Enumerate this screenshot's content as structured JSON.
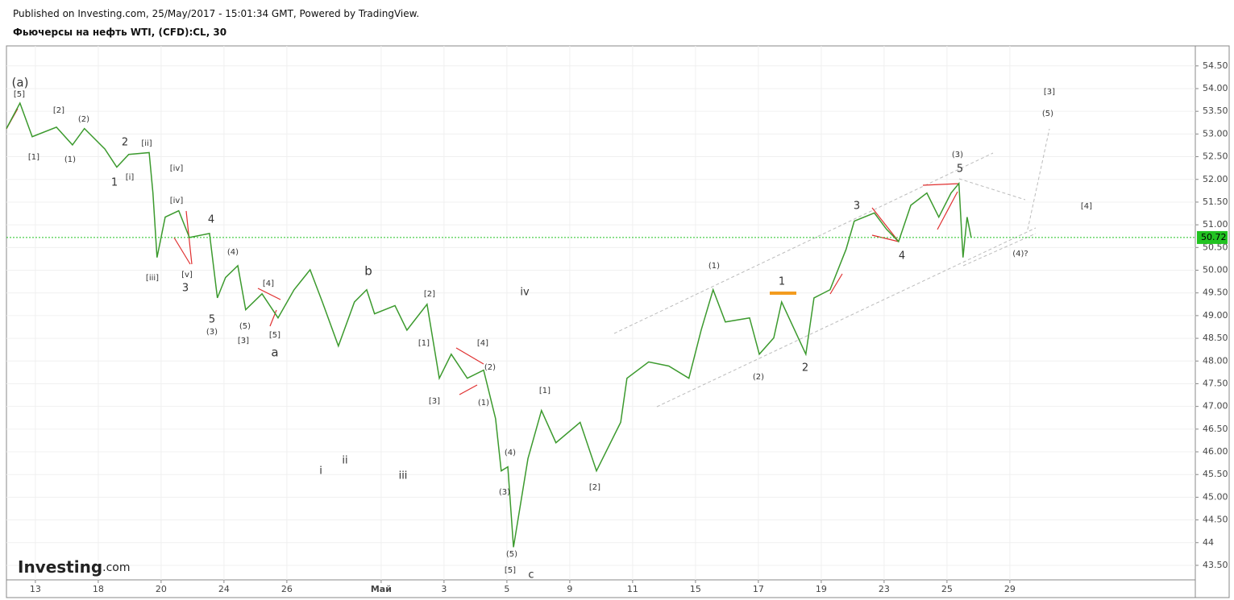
{
  "header": {
    "published": "Published on Investing.com, 25/May/2017 - 15:01:34 GMT, Powered by TradingView.",
    "instrument": "Фьючерсы на нефть WTI, (CFD):CL, 30"
  },
  "logo": {
    "name": "Investing",
    "suffix": ".com"
  },
  "chart_data": {
    "type": "line",
    "x": [
      -0.92,
      -0.49,
      -0.1,
      0.67,
      1.18,
      1.56,
      2.21,
      2.59,
      2.97,
      3.62,
      3.74,
      3.87,
      4.13,
      4.56,
      4.9,
      5.54,
      5.79,
      6.05,
      6.44,
      6.69,
      7.21,
      7.72,
      8.23,
      8.74,
      9.13,
      9.64,
      10.15,
      10.54,
      10.79,
      11.44,
      11.82,
      12.46,
      12.85,
      13.23,
      13.74,
      14.26,
      14.64,
      14.82,
      15.03,
      15.21,
      15.67,
      16.1,
      16.56,
      17.33,
      17.85,
      18.62,
      18.82,
      19.51,
      20.15,
      20.79,
      21.18,
      21.56,
      21.95,
      22.72,
      23.03,
      23.49,
      23.74,
      24.51,
      24.77,
      25.28,
      25.79,
      26.05,
      26.69,
      27.08,
      27.46,
      27.85,
      28.36,
      28.74,
      29.13,
      29.38,
      29.51,
      29.64,
      29.77
    ],
    "series": [
      {
        "color": "#3c9a2e",
        "values": [
          53.12,
          53.68,
          52.94,
          53.15,
          52.76,
          53.12,
          52.67,
          52.27,
          52.55,
          52.59,
          51.7,
          50.28,
          51.17,
          51.31,
          50.72,
          50.81,
          49.39,
          49.84,
          50.1,
          49.13,
          49.48,
          48.95,
          49.57,
          50.01,
          49.3,
          48.33,
          49.3,
          49.57,
          49.04,
          49.22,
          48.68,
          49.25,
          47.62,
          48.15,
          47.62,
          47.8,
          46.73,
          45.58,
          45.67,
          43.9,
          45.85,
          46.91,
          46.2,
          46.65,
          45.58,
          46.65,
          47.62,
          47.98,
          47.89,
          47.62,
          48.68,
          49.57,
          48.86,
          48.95,
          48.15,
          48.51,
          49.3,
          48.15,
          49.39,
          49.57,
          50.46,
          51.08,
          51.26,
          50.9,
          50.63,
          51.43,
          51.7,
          51.17,
          51.7,
          51.91,
          50.28,
          51.17,
          50.72
        ]
      }
    ],
    "xlim": [
      -0.92,
      36.9
    ],
    "xticks": [
      {
        "value": 0,
        "label": "13"
      },
      {
        "value": 2,
        "label": "18"
      },
      {
        "value": 4,
        "label": "20"
      },
      {
        "value": 6,
        "label": "24"
      },
      {
        "value": 8,
        "label": "26"
      },
      {
        "value": 11,
        "label": "Май"
      },
      {
        "value": 13,
        "label": "3"
      },
      {
        "value": 15,
        "label": "5"
      },
      {
        "value": 17,
        "label": "9"
      },
      {
        "value": 19,
        "label": "11"
      },
      {
        "value": 21,
        "label": "15"
      },
      {
        "value": 23,
        "label": "17"
      },
      {
        "value": 25,
        "label": "19"
      },
      {
        "value": 27,
        "label": "23"
      },
      {
        "value": 29,
        "label": "25"
      },
      {
        "value": 31,
        "label": "29"
      }
    ],
    "ylim": [
      43.18,
      54.94
    ],
    "yticks": [
      {
        "value": 43.5,
        "label": "43.50"
      },
      44,
      {
        "value": 44.5,
        "label": "44.50"
      },
      {
        "value": 45,
        "label": "45.00"
      },
      {
        "value": 45.5,
        "label": "45.50"
      },
      {
        "value": 46,
        "label": "46.00"
      },
      {
        "value": 46.5,
        "label": "46.50"
      },
      {
        "value": 47,
        "label": "47.00"
      },
      {
        "value": 47.5,
        "label": "47.50"
      },
      {
        "value": 48,
        "label": "48.00"
      },
      {
        "value": 48.5,
        "label": "48.50"
      },
      {
        "value": 49,
        "label": "49.00"
      },
      {
        "value": 49.5,
        "label": "49.50"
      },
      {
        "value": 50,
        "label": "50.00"
      },
      {
        "value": 50.5,
        "label": "50.50"
      },
      {
        "value": 51,
        "label": "51.00"
      },
      {
        "value": 51.5,
        "label": "51.50"
      },
      {
        "value": 52,
        "label": "52.00"
      },
      {
        "value": 52.5,
        "label": "52.50"
      },
      {
        "value": 53,
        "label": "53.00"
      },
      {
        "value": 53.5,
        "label": "53.50"
      },
      {
        "value": 54,
        "label": "54.00"
      },
      {
        "value": 54.5,
        "label": "54.50"
      }
    ],
    "grid": true,
    "last_price": 50.72,
    "last_price_color": "#22c322",
    "annotations": [
      "(a)",
      "[5]",
      "[1]",
      "[2]",
      "(1)",
      "(2)",
      "2",
      "1",
      "[i]",
      "[ii]",
      "[iv]",
      "[iv]",
      "[iii]",
      "[v]",
      "3",
      "4",
      "(4)",
      "5",
      "(3)",
      "(5)",
      "[3]",
      "[4]",
      "[5]",
      "a",
      "b",
      "iv",
      "[2]",
      "[1]",
      "[3]",
      "[4]",
      "(2)",
      "(1)",
      "i",
      "ii",
      "iii",
      "(4)",
      "(3)",
      "(5)",
      "[5]",
      "c",
      "[1]",
      "[2]",
      "(1)",
      "(2)",
      "1",
      "2",
      "3",
      "4",
      "(3)",
      "5",
      "(4)?",
      "[3]",
      "(5)",
      "[4]"
    ]
  }
}
